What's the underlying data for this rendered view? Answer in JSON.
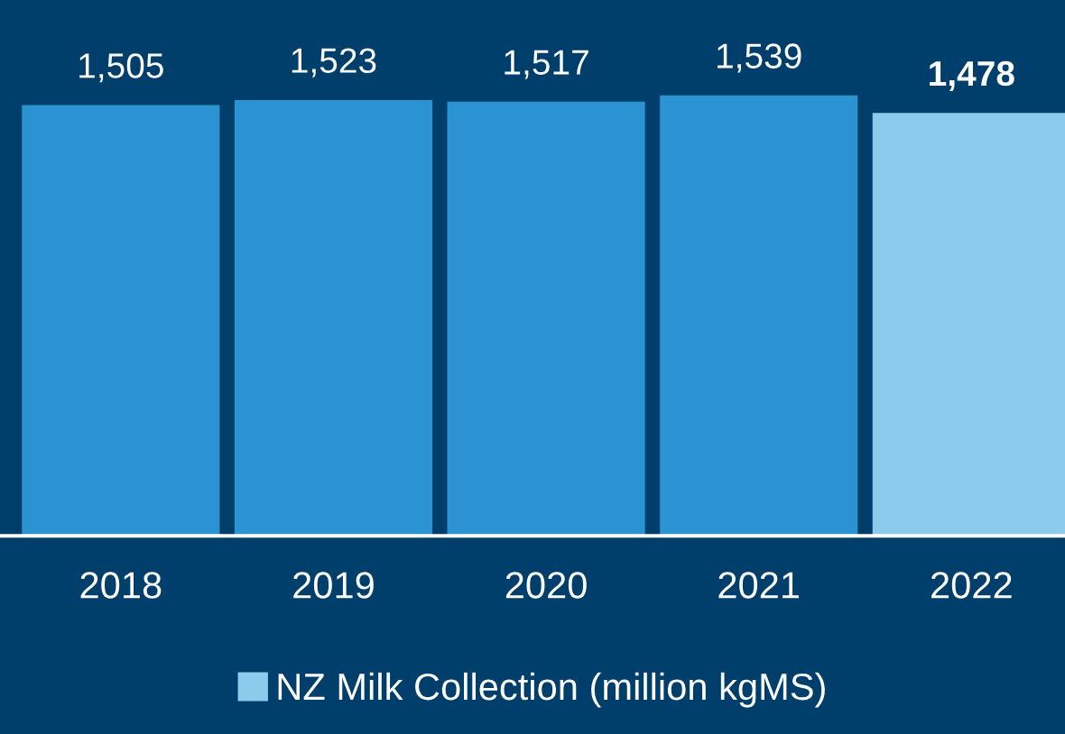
{
  "chart_data": {
    "type": "bar",
    "categories": [
      "2018",
      "2019",
      "2020",
      "2021",
      "2022"
    ],
    "series": [
      {
        "name": "NZ Milk Collection (million kgMS)",
        "color": "#8ccbeb",
        "colors": [
          "#2b93d1",
          "#2b93d1",
          "#2b93d1",
          "#2b93d1",
          "#8ccbeb"
        ],
        "values": [
          1505,
          1523,
          1517,
          1539,
          1478
        ],
        "value_labels": [
          "1,505",
          "1,523",
          "1,517",
          "1,539",
          "1,478"
        ]
      }
    ],
    "legend": "bottom",
    "grid": false
  }
}
